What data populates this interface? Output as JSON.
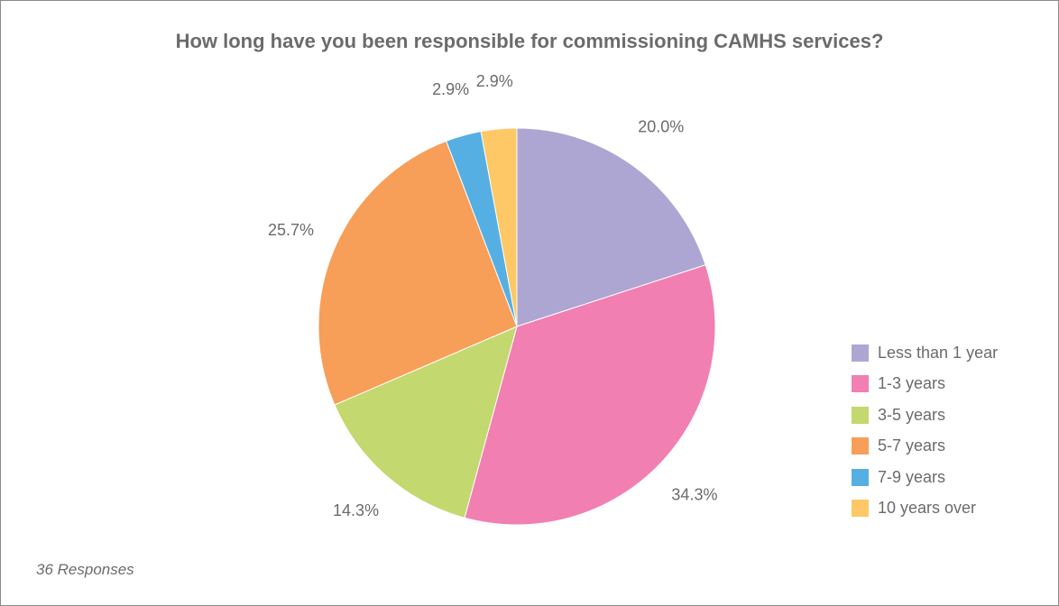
{
  "chart_data": {
    "type": "pie",
    "title": "How long have you been responsible for commissioning CAMHS services?",
    "categories": [
      "Less than 1 year",
      "1-3 years",
      "3-5 years",
      "5-7 years",
      "7-9 years",
      "10 years over"
    ],
    "values": [
      20.0,
      34.3,
      14.3,
      25.7,
      2.9,
      2.9
    ],
    "value_labels": [
      "20.0%",
      "34.3%",
      "14.3%",
      "25.7%",
      "2.9%",
      "2.9%"
    ],
    "colors": [
      "#aea6d2",
      "#f17fb2",
      "#c3d86f",
      "#f79e59",
      "#56afe3",
      "#fdc865"
    ],
    "legend_position": "right",
    "start_angle": "12 o'clock",
    "direction": "clockwise"
  },
  "footnote": "36 Responses"
}
